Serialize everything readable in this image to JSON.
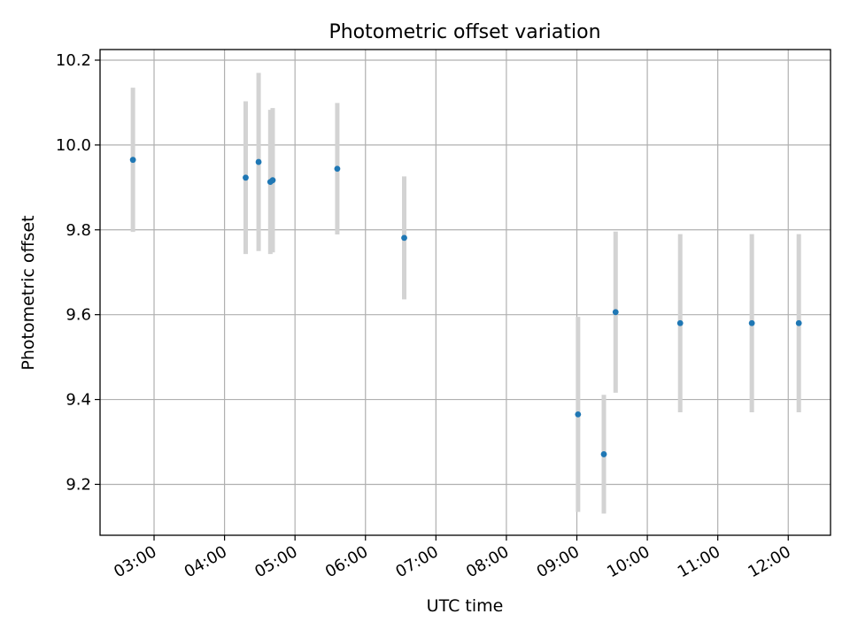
{
  "chart_data": {
    "type": "scatter",
    "title": "Photometric offset variation",
    "xlabel": "UTC time",
    "ylabel": "Photometric offset",
    "x_axis_type": "time",
    "x_range": [
      "02:14",
      "12:36"
    ],
    "ylim": [
      9.08,
      10.225
    ],
    "x_ticks": [
      "03:00",
      "04:00",
      "05:00",
      "06:00",
      "07:00",
      "08:00",
      "09:00",
      "10:00",
      "11:00",
      "12:00"
    ],
    "y_ticks": [
      9.2,
      9.4,
      9.6,
      9.8,
      10.0,
      10.2
    ],
    "y_tick_labels": [
      "9.2",
      "9.4",
      "9.6",
      "9.8",
      "10.0",
      "10.2"
    ],
    "grid": true,
    "colors": {
      "point": "#1f77b4",
      "errorbar": "#d3d3d3",
      "grid": "#b0b0b0"
    },
    "points": [
      {
        "x": "02:42",
        "y": 9.965,
        "err": 0.17
      },
      {
        "x": "04:18",
        "y": 9.923,
        "err": 0.18
      },
      {
        "x": "04:29",
        "y": 9.96,
        "err": 0.21
      },
      {
        "x": "04:39",
        "y": 9.913,
        "err": 0.17
      },
      {
        "x": "04:41",
        "y": 9.917,
        "err": 0.17
      },
      {
        "x": "05:36",
        "y": 9.944,
        "err": 0.155
      },
      {
        "x": "06:33",
        "y": 9.781,
        "err": 0.145
      },
      {
        "x": "09:01",
        "y": 9.365,
        "err": 0.23
      },
      {
        "x": "09:23",
        "y": 9.271,
        "err": 0.14
      },
      {
        "x": "09:33",
        "y": 9.606,
        "err": 0.19
      },
      {
        "x": "10:28",
        "y": 9.58,
        "err": 0.21
      },
      {
        "x": "11:29",
        "y": 9.58,
        "err": 0.21
      },
      {
        "x": "12:09",
        "y": 9.58,
        "err": 0.21
      }
    ]
  }
}
